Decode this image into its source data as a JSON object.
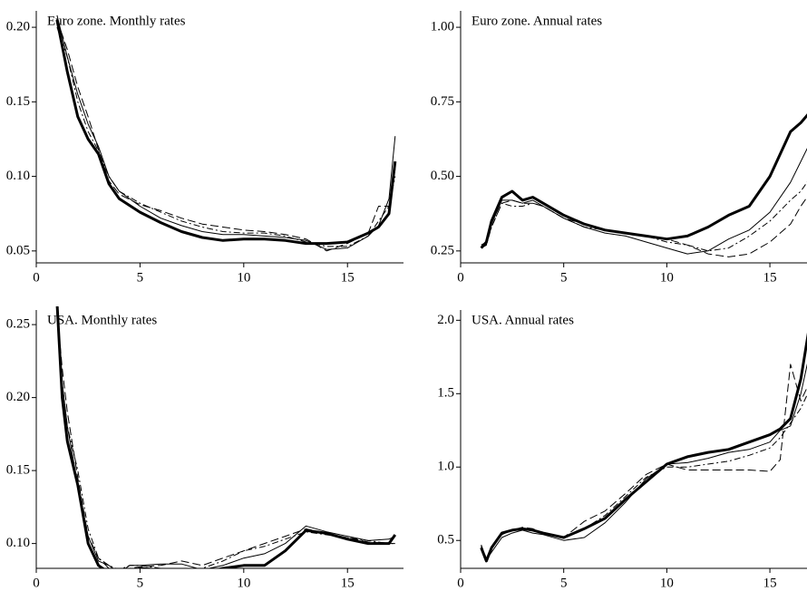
{
  "chart_data": [
    {
      "type": "line",
      "title": "Euro zone. Monthly rates",
      "x": [
        1,
        1.5,
        2,
        2.5,
        3,
        3.5,
        4,
        5,
        6,
        7,
        8,
        9,
        10,
        11,
        12,
        13,
        14,
        15,
        16,
        16.5,
        17,
        17.3
      ],
      "xlim": [
        0,
        17.7
      ],
      "xticks": [
        0,
        5,
        10,
        15
      ],
      "ylim": [
        0.042,
        0.211
      ],
      "yticks": [
        {
          "value": 0.05,
          "label": "0.05"
        },
        {
          "value": 0.1,
          "label": "0.10"
        },
        {
          "value": 0.15,
          "label": "0.15"
        },
        {
          "value": 0.2,
          "label": "0.20"
        }
      ],
      "series": [
        {
          "color": "#000000",
          "style": "thick",
          "values": [
            0.205,
            0.17,
            0.14,
            0.125,
            0.115,
            0.095,
            0.085,
            0.076,
            0.069,
            0.063,
            0.059,
            0.057,
            0.058,
            0.058,
            0.057,
            0.055,
            0.055,
            0.056,
            0.062,
            0.066,
            0.075,
            0.11
          ]
        },
        {
          "color": "#000000",
          "style": "thin",
          "values": [
            0.208,
            0.18,
            0.155,
            0.135,
            0.12,
            0.1,
            0.09,
            0.08,
            0.072,
            0.067,
            0.063,
            0.061,
            0.061,
            0.06,
            0.059,
            0.057,
            0.051,
            0.052,
            0.06,
            0.067,
            0.085,
            0.127
          ]
        },
        {
          "color": "#000000",
          "style": "dashed",
          "values": [
            0.205,
            0.185,
            0.16,
            0.14,
            0.118,
            0.097,
            0.088,
            0.081,
            0.077,
            0.072,
            0.068,
            0.066,
            0.064,
            0.063,
            0.061,
            0.058,
            0.05,
            0.055,
            0.062,
            0.08,
            0.08,
            0.105
          ]
        },
        {
          "color": "#000000",
          "style": "dashdot",
          "values": [
            0.2,
            0.18,
            0.15,
            0.13,
            0.117,
            0.1,
            0.09,
            0.082,
            0.076,
            0.07,
            0.066,
            0.063,
            0.062,
            0.062,
            0.06,
            0.056,
            0.053,
            0.053,
            0.06,
            0.07,
            0.08,
            0.1
          ]
        }
      ]
    },
    {
      "type": "line",
      "title": "Euro zone. Annual rates",
      "x": [
        1,
        1.25,
        1.5,
        2,
        2.5,
        3,
        3.5,
        4,
        5,
        6,
        7,
        8,
        9,
        10,
        11,
        12,
        13,
        14,
        15,
        16,
        16.5,
        17
      ],
      "xlim": [
        0,
        16.8
      ],
      "xticks": [
        0,
        5,
        10,
        15
      ],
      "ylim": [
        0.21,
        1.055
      ],
      "yticks": [
        {
          "value": 0.25,
          "label": "0.25"
        },
        {
          "value": 0.5,
          "label": "0.50"
        },
        {
          "value": 0.75,
          "label": "0.75"
        },
        {
          "value": 1,
          "label": "1.00"
        }
      ],
      "series": [
        {
          "color": "#000000",
          "style": "thick",
          "values": [
            0.26,
            0.28,
            0.35,
            0.43,
            0.45,
            0.42,
            0.43,
            0.41,
            0.37,
            0.34,
            0.32,
            0.31,
            0.3,
            0.29,
            0.3,
            0.33,
            0.37,
            0.4,
            0.5,
            0.65,
            0.68,
            0.72
          ]
        },
        {
          "color": "#000000",
          "style": "thin",
          "values": [
            0.26,
            0.27,
            0.34,
            0.42,
            0.42,
            0.41,
            0.42,
            0.4,
            0.36,
            0.33,
            0.31,
            0.3,
            0.28,
            0.26,
            0.24,
            0.25,
            0.29,
            0.32,
            0.38,
            0.48,
            0.55,
            0.62
          ]
        },
        {
          "color": "#000000",
          "style": "dashed",
          "values": [
            0.27,
            0.28,
            0.33,
            0.41,
            0.42,
            0.41,
            0.41,
            0.4,
            0.36,
            0.34,
            0.32,
            0.31,
            0.3,
            0.29,
            0.27,
            0.24,
            0.23,
            0.24,
            0.28,
            0.34,
            0.4,
            0.45
          ]
        },
        {
          "color": "#000000",
          "style": "dashdot",
          "values": [
            0.26,
            0.27,
            0.33,
            0.41,
            0.4,
            0.4,
            0.41,
            0.4,
            0.36,
            0.33,
            0.32,
            0.31,
            0.3,
            0.28,
            0.27,
            0.25,
            0.26,
            0.3,
            0.35,
            0.42,
            0.45,
            0.5
          ]
        }
      ]
    },
    {
      "type": "line",
      "title": "USA. Monthly rates",
      "x": [
        1,
        1.25,
        1.5,
        2,
        2.5,
        3,
        3.5,
        4,
        4.5,
        5,
        6,
        7,
        8,
        9,
        10,
        11,
        12,
        13,
        14,
        15,
        16,
        17,
        17.3
      ],
      "xlim": [
        0,
        17.7
      ],
      "xticks": [
        0,
        5,
        10,
        15
      ],
      "ylim": [
        0.083,
        0.26
      ],
      "yticks": [
        {
          "value": 0.1,
          "label": "0.10"
        },
        {
          "value": 0.15,
          "label": "0.15"
        },
        {
          "value": 0.2,
          "label": "0.20"
        },
        {
          "value": 0.25,
          "label": "0.25"
        }
      ],
      "series": [
        {
          "color": "#000000",
          "style": "thick",
          "values": [
            0.265,
            0.2,
            0.17,
            0.14,
            0.1,
            0.085,
            0.08,
            0.077,
            0.08,
            0.083,
            0.082,
            0.078,
            0.08,
            0.083,
            0.085,
            0.085,
            0.095,
            0.109,
            0.107,
            0.103,
            0.1,
            0.1,
            0.106
          ]
        },
        {
          "color": "#000000",
          "style": "thin",
          "values": [
            0.26,
            0.21,
            0.18,
            0.14,
            0.105,
            0.088,
            0.085,
            0.08,
            0.085,
            0.085,
            0.086,
            0.086,
            0.082,
            0.085,
            0.09,
            0.093,
            0.1,
            0.112,
            0.108,
            0.105,
            0.102,
            0.103,
            0.105
          ]
        },
        {
          "color": "#000000",
          "style": "dashed",
          "values": [
            0.26,
            0.22,
            0.19,
            0.145,
            0.105,
            0.09,
            0.083,
            0.08,
            0.083,
            0.084,
            0.085,
            0.088,
            0.085,
            0.09,
            0.095,
            0.1,
            0.105,
            0.11,
            0.107,
            0.104,
            0.101,
            0.1,
            0.1
          ]
        },
        {
          "color": "#000000",
          "style": "dashdot",
          "values": [
            0.26,
            0.21,
            0.18,
            0.15,
            0.11,
            0.09,
            0.085,
            0.082,
            0.085,
            0.085,
            0.083,
            0.082,
            0.083,
            0.088,
            0.095,
            0.098,
            0.103,
            0.108,
            0.106,
            0.104,
            0.102,
            0.1,
            0.1
          ]
        }
      ]
    },
    {
      "type": "line",
      "title": "USA. Annual rates",
      "x": [
        1,
        1.25,
        1.5,
        2,
        2.5,
        3,
        3.5,
        4,
        5,
        6,
        7,
        8,
        9,
        10,
        11,
        12,
        13,
        14,
        15,
        15.5,
        16,
        16.5,
        17
      ],
      "xlim": [
        0,
        16.8
      ],
      "xticks": [
        0,
        5,
        10,
        15
      ],
      "ylim": [
        0.31,
        2.07
      ],
      "yticks": [
        0.5,
        {
          "value": 1,
          "label": "1.0"
        },
        1.5,
        {
          "value": 2,
          "label": "2.0"
        }
      ],
      "series": [
        {
          "color": "#000000",
          "style": "thick",
          "values": [
            0.45,
            0.36,
            0.45,
            0.55,
            0.57,
            0.58,
            0.57,
            0.55,
            0.52,
            0.58,
            0.65,
            0.78,
            0.9,
            1.02,
            1.07,
            1.1,
            1.12,
            1.17,
            1.22,
            1.26,
            1.33,
            1.6,
            2.03
          ]
        },
        {
          "color": "#000000",
          "style": "thin",
          "values": [
            0.47,
            0.37,
            0.42,
            0.52,
            0.55,
            0.57,
            0.55,
            0.54,
            0.5,
            0.52,
            0.62,
            0.76,
            0.92,
            1.02,
            1.03,
            1.06,
            1.1,
            1.12,
            1.17,
            1.25,
            1.28,
            1.5,
            1.82
          ]
        },
        {
          "color": "#000000",
          "style": "dashed",
          "values": [
            0.46,
            0.37,
            0.44,
            0.55,
            0.57,
            0.59,
            0.58,
            0.55,
            0.52,
            0.63,
            0.7,
            0.82,
            0.95,
            1.02,
            0.98,
            0.98,
            0.98,
            0.98,
            0.97,
            1.05,
            1.7,
            1.45,
            1.6
          ]
        },
        {
          "color": "#000000",
          "style": "dashdot",
          "values": [
            0.46,
            0.38,
            0.45,
            0.54,
            0.57,
            0.58,
            0.57,
            0.55,
            0.52,
            0.58,
            0.67,
            0.8,
            0.93,
            1.0,
            1.0,
            1.02,
            1.04,
            1.08,
            1.13,
            1.2,
            1.3,
            1.4,
            1.55
          ]
        }
      ]
    }
  ]
}
